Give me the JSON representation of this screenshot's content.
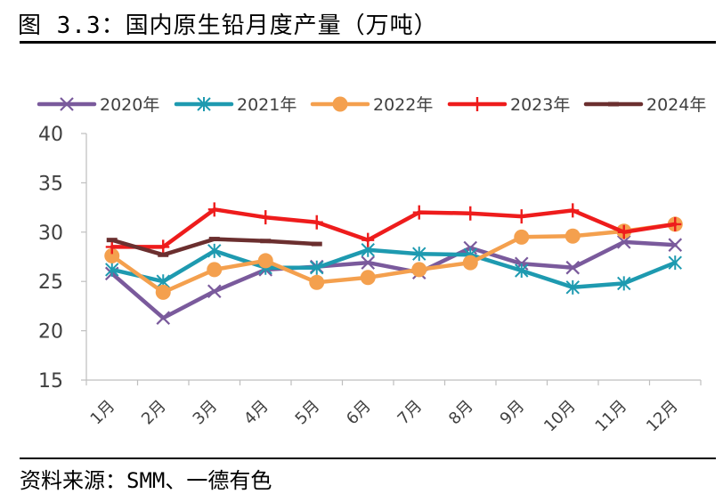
{
  "header": {
    "title": "图 3.3：国内原生铅月度产量（万吨）"
  },
  "footer": {
    "source": "资料来源：SMM、一德有色"
  },
  "chart_data": {
    "type": "line",
    "categories": [
      "1月",
      "2月",
      "3月",
      "4月",
      "5月",
      "6月",
      "7月",
      "8月",
      "9月",
      "10月",
      "11月",
      "12月"
    ],
    "ylim": [
      15,
      40
    ],
    "yticks": [
      15,
      20,
      25,
      30,
      35,
      40
    ],
    "grid": false,
    "legend_position": "top",
    "series": [
      {
        "name": "2020年",
        "color": "#7a5a9c",
        "marker": "x",
        "values": [
          25.8,
          21.3,
          24.0,
          26.2,
          26.5,
          26.9,
          25.9,
          28.4,
          26.8,
          26.4,
          29.0,
          28.7
        ]
      },
      {
        "name": "2021年",
        "color": "#1e9ab0",
        "marker": "asterisk",
        "values": [
          26.2,
          25.0,
          28.1,
          26.4,
          26.4,
          28.2,
          27.8,
          27.7,
          26.1,
          24.4,
          24.8,
          26.9
        ]
      },
      {
        "name": "2022年",
        "color": "#f4a04e",
        "marker": "circle",
        "values": [
          27.6,
          23.9,
          26.2,
          27.1,
          24.9,
          25.4,
          26.2,
          26.9,
          29.5,
          29.6,
          30.1,
          30.8
        ]
      },
      {
        "name": "2023年",
        "color": "#ee1c1c",
        "marker": "plus",
        "values": [
          28.5,
          28.5,
          32.3,
          31.5,
          31.0,
          29.2,
          32.0,
          31.9,
          31.6,
          32.2,
          30.0,
          30.8
        ]
      },
      {
        "name": "2024年",
        "color": "#6b2f2f",
        "marker": "dash",
        "values": [
          29.2,
          27.7,
          29.3,
          29.1,
          28.8,
          null,
          null,
          null,
          null,
          null,
          null,
          null
        ]
      }
    ]
  }
}
